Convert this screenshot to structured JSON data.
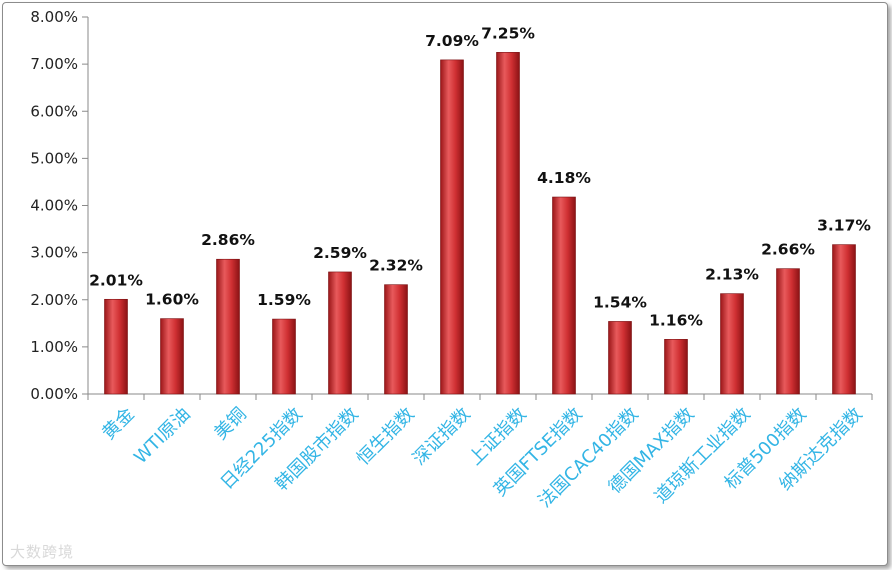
{
  "chart_data": {
    "type": "bar",
    "categories": [
      "黄金",
      "WTI原油",
      "美铜",
      "日经225指数",
      "韩国股市指数",
      "恒生指数",
      "深证指数",
      "上证指数",
      "英国FTSE指数",
      "法国CAC40指数",
      "德国MAX指数",
      "道琼斯工业指数",
      "标普500指数",
      "纳斯达克指数"
    ],
    "values": [
      2.01,
      1.6,
      2.86,
      1.59,
      2.59,
      2.32,
      7.09,
      7.25,
      4.18,
      1.54,
      1.16,
      2.13,
      2.66,
      3.17
    ],
    "data_labels": [
      "2.01%",
      "1.60%",
      "2.86%",
      "1.59%",
      "2.59%",
      "2.32%",
      "7.09%",
      "7.25%",
      "4.18%",
      "1.54%",
      "1.16%",
      "2.13%",
      "2.66%",
      "3.17%"
    ],
    "y_ticks": [
      "0.00%",
      "1.00%",
      "2.00%",
      "3.00%",
      "4.00%",
      "5.00%",
      "6.00%",
      "7.00%",
      "8.00%"
    ],
    "ylim": [
      0,
      8
    ],
    "y_unit": "%",
    "grid": false,
    "colors": {
      "bar": "#c8262a",
      "bar_light": "#e8585a",
      "bar_dark": "#8e1416",
      "category_text": "#33b5e5"
    }
  },
  "watermark": "大数跨境"
}
